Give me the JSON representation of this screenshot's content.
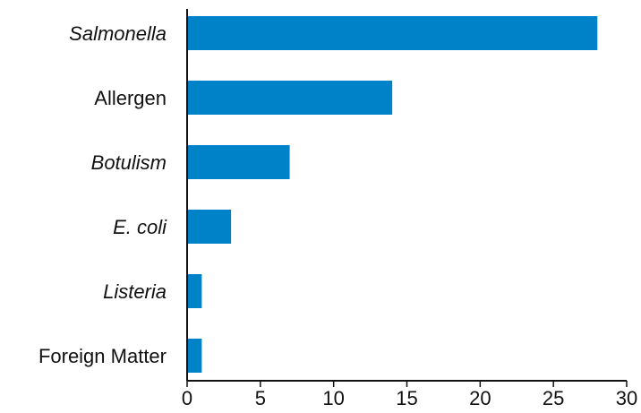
{
  "chart_data": {
    "type": "bar",
    "orientation": "horizontal",
    "title": "",
    "xlabel": "",
    "ylabel": "",
    "categories": [
      "Salmonella",
      "Allergen",
      "Botulism",
      "E. coli",
      "Listeria",
      "Foreign Matter"
    ],
    "italic_categories": [
      "Salmonella",
      "Botulism",
      "E. coli",
      "Listeria"
    ],
    "values": [
      28,
      14,
      7,
      3,
      1,
      1
    ],
    "xlim": [
      0,
      30
    ],
    "x_ticks": [
      0,
      5,
      10,
      15,
      20,
      25,
      30
    ],
    "x_tick_labels": [
      "0",
      "5",
      "10",
      "15",
      "20",
      "25",
      "30"
    ],
    "bar_color": "#0082c8",
    "grid": false,
    "legend": "none"
  }
}
